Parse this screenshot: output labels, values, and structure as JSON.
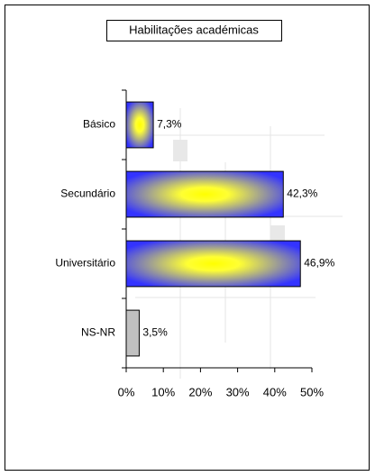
{
  "chart_data": {
    "type": "bar",
    "orientation": "horizontal",
    "title": "Habilitações académicas",
    "categories": [
      "Básico",
      "Secundário",
      "Universitário",
      "NS-NR"
    ],
    "values": [
      7.3,
      42.3,
      46.9,
      3.5
    ],
    "value_labels": [
      "7,3%",
      "42,3%",
      "46,9%",
      "3,5%"
    ],
    "colors": [
      "#3333ff",
      "#3333ff",
      "#3333ff",
      "#c0c0c0"
    ],
    "xlim": [
      0,
      50
    ],
    "xticks": [
      {
        "value": 0,
        "label": "0%"
      },
      {
        "value": 10,
        "label": "10%"
      },
      {
        "value": 20,
        "label": "20%"
      },
      {
        "value": 30,
        "label": "30%"
      },
      {
        "value": 40,
        "label": "40%"
      },
      {
        "value": 50,
        "label": "50%"
      }
    ]
  }
}
